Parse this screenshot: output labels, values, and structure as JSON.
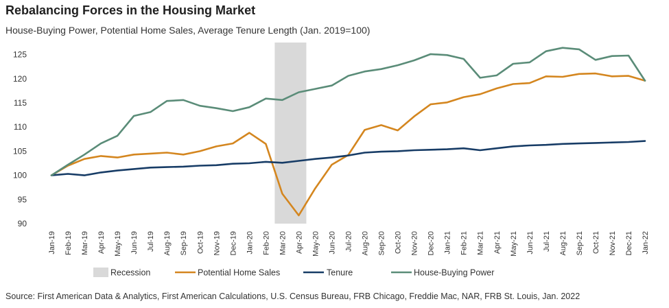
{
  "title": "Rebalancing Forces in the Housing Market",
  "subtitle": "House-Buying Power, Potential Home Sales, Average Tenure Length (Jan. 2019=100)",
  "source": "Source: First American Data & Analytics, First American Calculations, U.S. Census Bureau, FRB Chicago, Freddie Mac, NAR, FRB St. Louis, Jan. 2022",
  "colors": {
    "recession": "#d9d9d9",
    "potential_home_sales": "#d4861f",
    "tenure": "#173c66",
    "house_buying_power": "#5a8c78"
  },
  "chart_data": {
    "type": "line",
    "categories": [
      "Jan-19",
      "Feb-19",
      "Mar-19",
      "Apr-19",
      "May-19",
      "Jun-19",
      "Jul-19",
      "Aug-19",
      "Sep-19",
      "Oct-19",
      "Nov-19",
      "Dec-19",
      "Jan-20",
      "Feb-20",
      "Mar-20",
      "Apr-20",
      "May-20",
      "Jun-20",
      "Jul-20",
      "Aug-20",
      "Sep-20",
      "Oct-20",
      "Nov-20",
      "Dec-20",
      "Jan-21",
      "Feb-21",
      "Mar-21",
      "Apr-21",
      "May-21",
      "Jun-21",
      "Jul-21",
      "Aug-21",
      "Sep-21",
      "Oct-21",
      "Nov-21",
      "Dec-21",
      "Jan-22"
    ],
    "x_tick_labels": [
      "Jan-19",
      "Feb-19",
      "Mar-19",
      "Apr-19",
      "May-19",
      "Jun-19",
      "Jul-19",
      "Aug-19",
      "Sep-19",
      "Oct-19",
      "Nov-19",
      "Dec-19",
      "Jan-20",
      "Feb-20",
      "Mar-20",
      "Apr-20",
      "May-20",
      "Jun-20",
      "Jul-20",
      "Aug-20",
      "Sep-20",
      "Oct-20",
      "Nov-20",
      "Dec-20",
      "Jan-21",
      "Feb-21",
      "Mar-21",
      "Apr-21",
      "May-21",
      "Jun-21",
      "Jul-21",
      "Aug-21",
      "Sep-21",
      "Oct-21",
      "Nov-21",
      "Dec-21",
      "Jan-22"
    ],
    "y_ticks": [
      90,
      95,
      100,
      105,
      110,
      115,
      120,
      125
    ],
    "ylim": [
      90,
      127.5
    ],
    "grid": false,
    "legend_position": "bottom",
    "recession": {
      "label": "Recession",
      "start": "Mar-20",
      "end": "Apr-20"
    },
    "series": [
      {
        "name": "Potential Home Sales",
        "key": "potential_home_sales",
        "values": [
          100,
          102,
          103.4,
          104,
          103.7,
          104.3,
          104.5,
          104.7,
          104.3,
          105,
          106,
          106.6,
          108.8,
          106.5,
          96.2,
          91.7,
          97.3,
          102.2,
          104.2,
          109.4,
          110.4,
          109.3,
          112.2,
          114.7,
          115.1,
          116.2,
          116.8,
          118,
          118.9,
          119.1,
          120.5,
          120.4,
          121,
          121.1,
          120.5,
          120.6,
          119.6
        ]
      },
      {
        "name": "Tenure",
        "key": "tenure",
        "values": [
          100,
          100.3,
          100,
          100.6,
          101,
          101.3,
          101.6,
          101.7,
          101.8,
          102,
          102.1,
          102.4,
          102.5,
          102.8,
          102.6,
          103,
          103.4,
          103.7,
          104.1,
          104.7,
          104.9,
          105,
          105.2,
          105.3,
          105.4,
          105.6,
          105.2,
          105.6,
          106,
          106.2,
          106.3,
          106.5,
          106.6,
          106.7,
          106.8,
          106.9,
          107.1
        ]
      },
      {
        "name": "House-Buying Power",
        "key": "house_buying_power",
        "values": [
          100,
          102.2,
          104.3,
          106.6,
          108.2,
          112.3,
          113.1,
          115.4,
          115.6,
          114.4,
          113.9,
          113.3,
          114.1,
          115.9,
          115.6,
          117.2,
          117.9,
          118.6,
          120.6,
          121.5,
          122,
          122.8,
          123.8,
          125.1,
          124.9,
          124.1,
          120.2,
          120.7,
          123.1,
          123.4,
          125.7,
          126.4,
          126.1,
          123.9,
          124.7,
          124.8,
          119.6
        ]
      }
    ]
  }
}
